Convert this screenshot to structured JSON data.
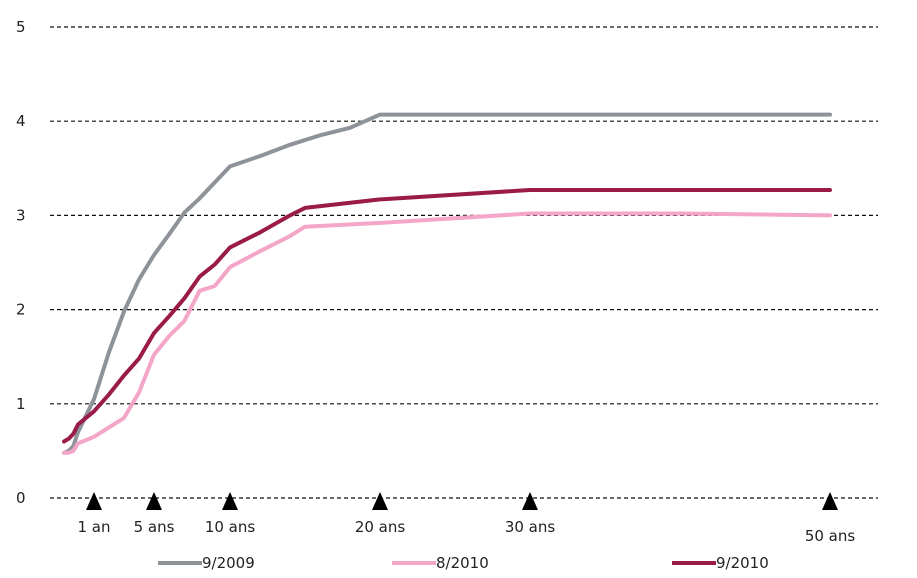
{
  "chart_data": {
    "type": "line",
    "title": "",
    "xlabel": "",
    "ylabel": "",
    "ylim": [
      0,
      5
    ],
    "y_ticks": [
      "0",
      "1",
      "2",
      "3",
      "4",
      "5"
    ],
    "grid": "horizontal dashed",
    "legend_position": "bottom",
    "x_markers": [
      {
        "label": "1 an",
        "x": 1
      },
      {
        "label": "5 ans",
        "x": 5
      },
      {
        "label": "10 ans",
        "x": 10
      },
      {
        "label": "20 ans",
        "x": 20
      },
      {
        "label": "30 ans",
        "x": 30
      },
      {
        "label": "50 ans",
        "x": 50
      }
    ],
    "series": [
      {
        "name": "9/2009",
        "color": "#8e9299",
        "points": [
          [
            -3,
            0.48
          ],
          [
            -2,
            0.5
          ],
          [
            -1,
            0.55
          ],
          [
            0,
            0.7
          ],
          [
            1,
            1.05
          ],
          [
            2,
            1.55
          ],
          [
            3,
            1.98
          ],
          [
            4,
            2.32
          ],
          [
            5,
            2.58
          ],
          [
            6,
            2.8
          ],
          [
            7,
            3.03
          ],
          [
            8,
            3.18
          ],
          [
            10,
            3.52
          ],
          [
            12,
            3.63
          ],
          [
            14,
            3.75
          ],
          [
            16,
            3.85
          ],
          [
            18,
            3.93
          ],
          [
            20,
            4.07
          ],
          [
            30,
            4.07
          ],
          [
            40,
            4.07
          ],
          [
            50,
            4.07
          ]
        ]
      },
      {
        "name": "8/2010",
        "color": "#f4a6c8",
        "points": [
          [
            -3,
            0.48
          ],
          [
            -2,
            0.48
          ],
          [
            -1,
            0.5
          ],
          [
            0,
            0.58
          ],
          [
            1,
            0.65
          ],
          [
            2,
            0.75
          ],
          [
            3,
            0.85
          ],
          [
            4,
            1.12
          ],
          [
            5,
            1.52
          ],
          [
            6,
            1.72
          ],
          [
            7,
            1.88
          ],
          [
            8,
            2.2
          ],
          [
            9,
            2.25
          ],
          [
            10,
            2.45
          ],
          [
            12,
            2.62
          ],
          [
            14,
            2.78
          ],
          [
            15,
            2.88
          ],
          [
            20,
            2.92
          ],
          [
            30,
            3.02
          ],
          [
            40,
            3.02
          ],
          [
            50,
            3.0
          ]
        ]
      },
      {
        "name": "9/2010",
        "color": "#9b1b48",
        "points": [
          [
            -3,
            0.6
          ],
          [
            -2,
            0.63
          ],
          [
            -1,
            0.68
          ],
          [
            0,
            0.78
          ],
          [
            1,
            0.92
          ],
          [
            2,
            1.1
          ],
          [
            3,
            1.3
          ],
          [
            4,
            1.48
          ],
          [
            5,
            1.75
          ],
          [
            6,
            1.93
          ],
          [
            7,
            2.12
          ],
          [
            8,
            2.35
          ],
          [
            9,
            2.48
          ],
          [
            10,
            2.66
          ],
          [
            12,
            2.82
          ],
          [
            14,
            3.0
          ],
          [
            15,
            3.08
          ],
          [
            20,
            3.17
          ],
          [
            30,
            3.27
          ],
          [
            40,
            3.27
          ],
          [
            50,
            3.27
          ]
        ]
      }
    ]
  }
}
